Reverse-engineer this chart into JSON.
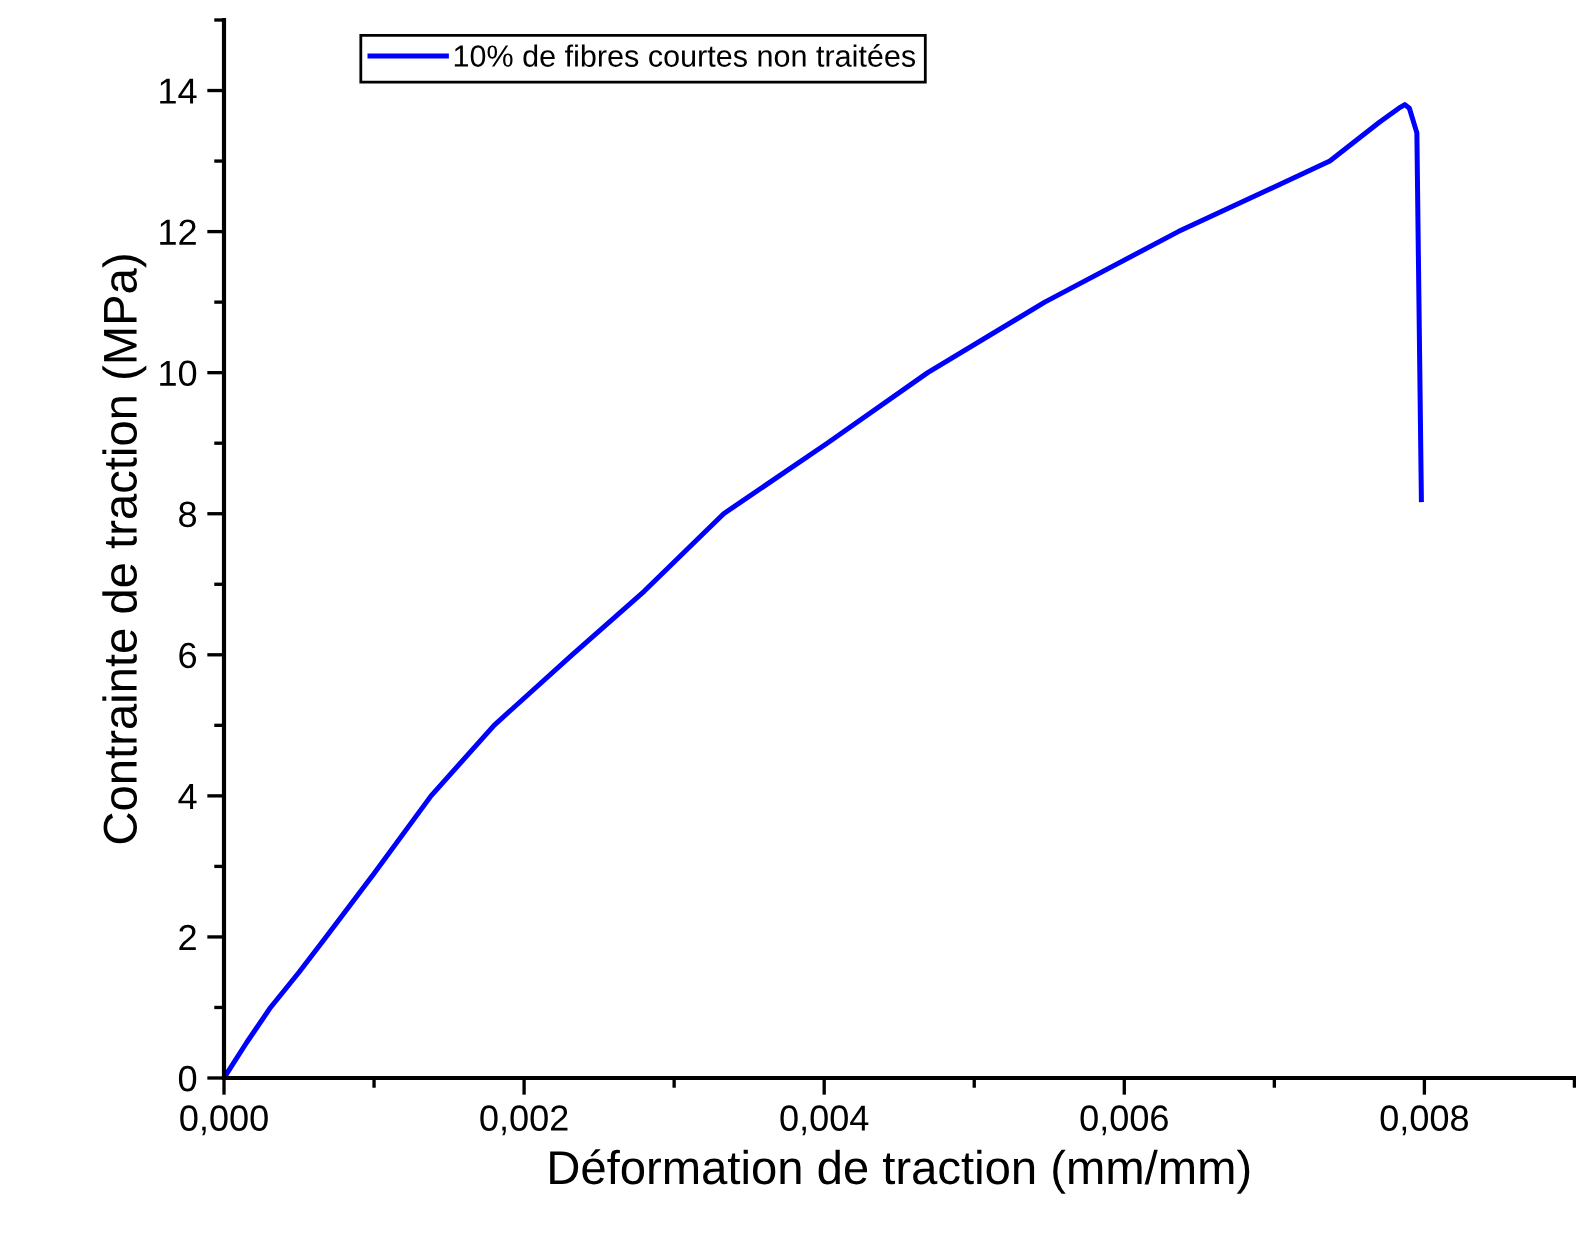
{
  "chart_data": {
    "type": "line",
    "xlabel": "Déformation de traction (mm/mm)",
    "ylabel": "Contrainte de traction (MPa)",
    "series": [
      {
        "name": "10% de fibres courtes non traitées",
        "color": "#0000ff",
        "x": [
          0,
          0.00015,
          0.00031,
          0.0005,
          0.00068,
          0.001,
          0.00138,
          0.0018,
          0.00232,
          0.0028,
          0.00333,
          0.00402,
          0.00469,
          0.00547,
          0.00636,
          0.00737,
          0.0077,
          0.00783,
          0.00787,
          0.0079,
          0.00795,
          0.00798
        ],
        "values": [
          0,
          0.5,
          1,
          1.5,
          2,
          2.9,
          4,
          5,
          6,
          6.9,
          8,
          9,
          10,
          11,
          12,
          13,
          13.55,
          13.75,
          13.8,
          13.75,
          13.4,
          8.2
        ]
      }
    ],
    "xlim": [
      0,
      0.009
    ],
    "ylim": [
      0,
      15
    ],
    "xticks": [
      {
        "value": 0,
        "label": "0,000"
      },
      {
        "value": 0.002,
        "label": "0,002"
      },
      {
        "value": 0.004,
        "label": "0,004"
      },
      {
        "value": 0.006,
        "label": "0,006"
      },
      {
        "value": 0.008,
        "label": "0,008"
      }
    ],
    "yticks": [
      0,
      2,
      4,
      6,
      8,
      10,
      12,
      14
    ],
    "grid": false,
    "legend": "top left",
    "line_style": "solid",
    "marker": "none"
  }
}
